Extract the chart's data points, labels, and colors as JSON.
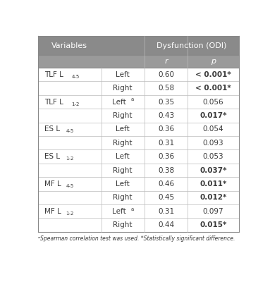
{
  "title_col1": "Variables",
  "title_col2": "Dysfunction (ODI)",
  "sub_r": "r",
  "sub_p": "p",
  "rows": [
    {
      "var": "TLF L",
      "sub": "4-5",
      "side": "Left",
      "side_sup": false,
      "r": "0.60",
      "p": "< 0.001*",
      "p_bold": true
    },
    {
      "var": "",
      "sub": "",
      "side": "Right",
      "side_sup": false,
      "r": "0.58",
      "p": "< 0.001*",
      "p_bold": true
    },
    {
      "var": "TLF L",
      "sub": "1-2",
      "side": "Left",
      "side_sup": true,
      "r": "0.35",
      "p": "0.056",
      "p_bold": false
    },
    {
      "var": "",
      "sub": "",
      "side": "Right",
      "side_sup": false,
      "r": "0.43",
      "p": "0.017*",
      "p_bold": true
    },
    {
      "var": "ES L",
      "sub": "4-5",
      "side": "Left",
      "side_sup": false,
      "r": "0.36",
      "p": "0.054",
      "p_bold": false
    },
    {
      "var": "",
      "sub": "",
      "side": "Right",
      "side_sup": false,
      "r": "0.31",
      "p": "0.093",
      "p_bold": false
    },
    {
      "var": "ES L",
      "sub": "1-2",
      "side": "Left",
      "side_sup": false,
      "r": "0.36",
      "p": "0.053",
      "p_bold": false
    },
    {
      "var": "",
      "sub": "",
      "side": "Right",
      "side_sup": false,
      "r": "0.38",
      "p": "0.037*",
      "p_bold": true
    },
    {
      "var": "MF L",
      "sub": "4-5",
      "side": "Left",
      "side_sup": false,
      "r": "0.46",
      "p": "0.011*",
      "p_bold": true
    },
    {
      "var": "",
      "sub": "",
      "side": "Right",
      "side_sup": false,
      "r": "0.45",
      "p": "0.012*",
      "p_bold": true
    },
    {
      "var": "MF L",
      "sub": "1-2",
      "side": "Left",
      "side_sup": true,
      "r": "0.31",
      "p": "0.097",
      "p_bold": false
    },
    {
      "var": "",
      "sub": "",
      "side": "Right",
      "side_sup": false,
      "r": "0.44",
      "p": "0.015*",
      "p_bold": true
    }
  ],
  "footnote": "ᵃSpearman correlation test was used. *Statistically significant difference.",
  "header_bg": "#8a8a8a",
  "subheader_bg": "#9a9a9a",
  "white_bg": "#ffffff",
  "text_dark": "#3a3a3a",
  "header_text": "#ffffff",
  "line_color": "#bbbbbb",
  "outer_line": "#888888",
  "fig_bg": "#ffffff"
}
